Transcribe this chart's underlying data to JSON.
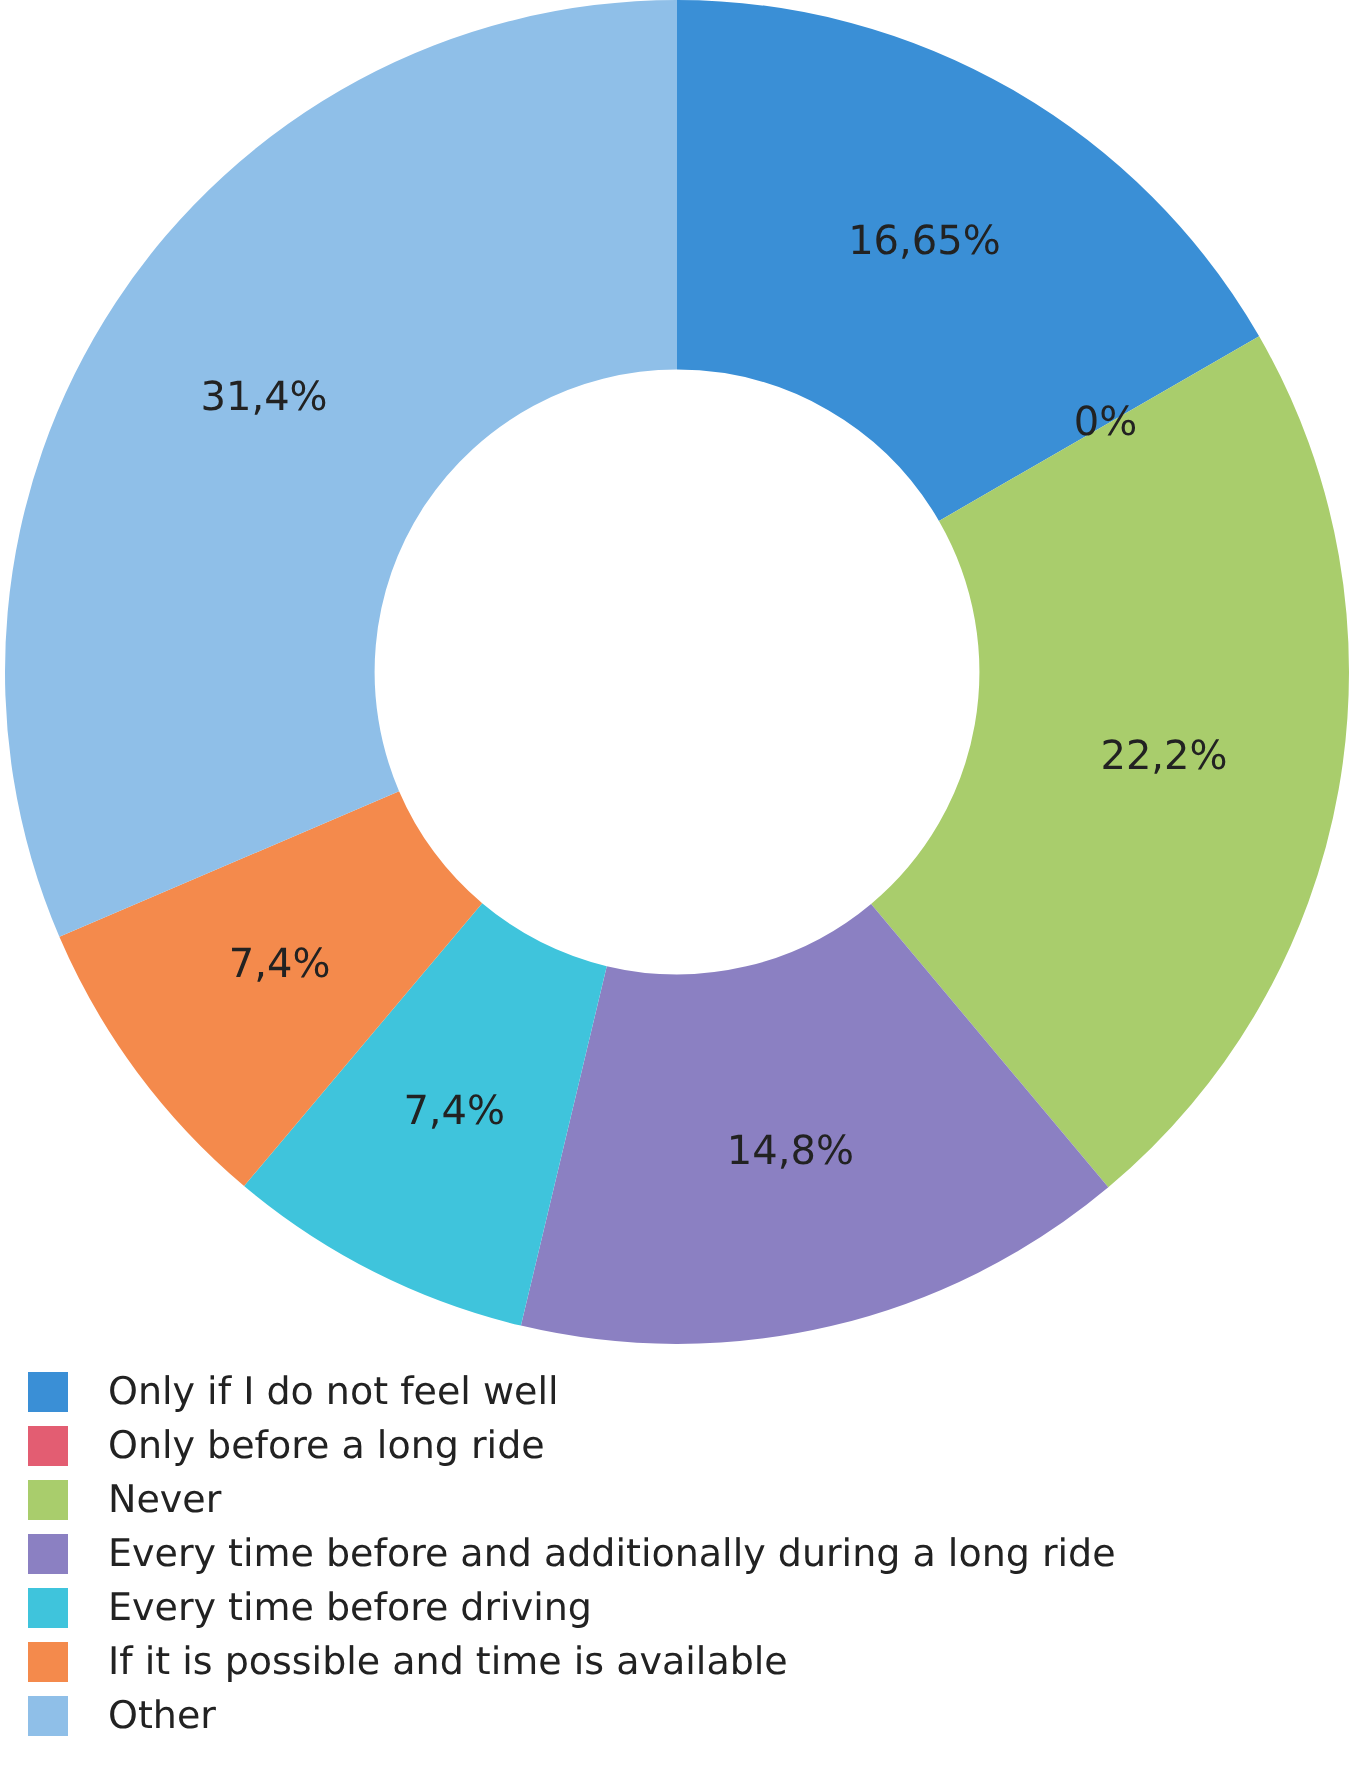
{
  "chart_data": {
    "type": "donut",
    "categories": [
      "Only if I do not feel well",
      "Only before a long ride",
      "Never",
      "Every time before and additionally during a long ride",
      "Every time before driving",
      "If it is possible and time is available",
      "Other"
    ],
    "values": [
      16.65,
      0,
      22.2,
      14.8,
      7.4,
      7.4,
      31.4
    ],
    "value_labels": [
      "16,65%",
      "0%",
      "22,2%",
      "14,8%",
      "7,4%",
      "7,4%",
      "31,4%"
    ],
    "colors": [
      "#3a8fd6",
      "#e35d72",
      "#a9cd6c",
      "#8b80c2",
      "#3fc4dc",
      "#f48a4c",
      "#8fbfe8"
    ],
    "legend": "bottom"
  }
}
